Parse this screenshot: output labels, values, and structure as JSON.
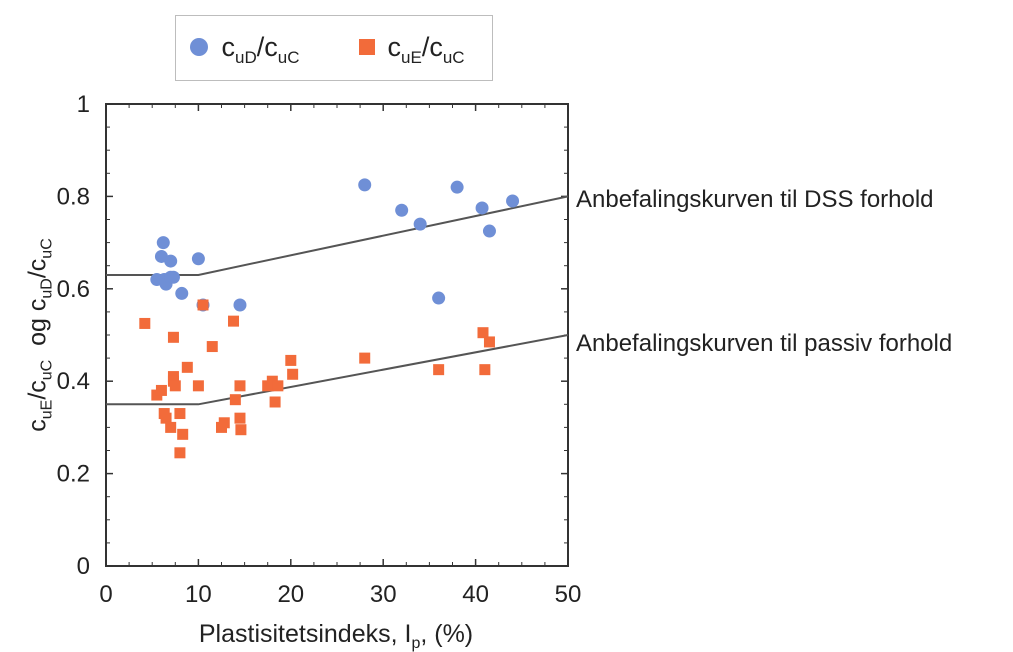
{
  "chart_data": {
    "type": "scatter",
    "xlabel_main": "Plastisitetsindeks, I",
    "xlabel_sub": "p",
    "xlabel_tail": ", (%)",
    "ylabel_parts": [
      "c",
      "uE",
      "/c",
      "uC",
      "  og c",
      "uD",
      "/c",
      "uC"
    ],
    "xlim": [
      0,
      50
    ],
    "ylim": [
      0,
      1
    ],
    "xticks": [
      0,
      10,
      20,
      30,
      40,
      50
    ],
    "yticks": [
      0,
      0.2,
      0.4,
      0.6,
      0.8,
      1
    ],
    "ytick_labels": [
      "0",
      "0.2",
      "0.4",
      "0.6",
      "0.8",
      "1"
    ],
    "legend_position": "top",
    "series": [
      {
        "name": "c_uD/c_uC",
        "name_parts": [
          "c",
          "uD",
          "/c",
          "uC"
        ],
        "marker": "circle",
        "color": "#6F8FD6",
        "points": [
          [
            5.5,
            0.62
          ],
          [
            6.0,
            0.67
          ],
          [
            6.2,
            0.7
          ],
          [
            6.3,
            0.62
          ],
          [
            6.5,
            0.61
          ],
          [
            7.0,
            0.66
          ],
          [
            7.0,
            0.625
          ],
          [
            7.3,
            0.625
          ],
          [
            8.2,
            0.59
          ],
          [
            10.0,
            0.665
          ],
          [
            10.5,
            0.565
          ],
          [
            14.5,
            0.565
          ],
          [
            28.0,
            0.825
          ],
          [
            32.0,
            0.77
          ],
          [
            34.0,
            0.74
          ],
          [
            36.0,
            0.58
          ],
          [
            38.0,
            0.82
          ],
          [
            40.7,
            0.775
          ],
          [
            41.5,
            0.725
          ],
          [
            44.0,
            0.79
          ]
        ]
      },
      {
        "name": "c_uE/c_uC",
        "name_parts": [
          "c",
          "uE",
          "/c",
          "uC"
        ],
        "marker": "square",
        "color": "#F26B3A",
        "points": [
          [
            4.2,
            0.525
          ],
          [
            5.5,
            0.37
          ],
          [
            6.0,
            0.38
          ],
          [
            6.3,
            0.33
          ],
          [
            6.5,
            0.32
          ],
          [
            7.0,
            0.3
          ],
          [
            7.3,
            0.495
          ],
          [
            7.3,
            0.41
          ],
          [
            7.3,
            0.4
          ],
          [
            7.5,
            0.39
          ],
          [
            8.0,
            0.33
          ],
          [
            8.0,
            0.245
          ],
          [
            8.3,
            0.285
          ],
          [
            8.8,
            0.43
          ],
          [
            10.0,
            0.39
          ],
          [
            10.5,
            0.565
          ],
          [
            11.5,
            0.475
          ],
          [
            12.5,
            0.3
          ],
          [
            12.8,
            0.31
          ],
          [
            13.8,
            0.53
          ],
          [
            14.0,
            0.36
          ],
          [
            14.5,
            0.39
          ],
          [
            14.5,
            0.32
          ],
          [
            14.6,
            0.295
          ],
          [
            17.5,
            0.39
          ],
          [
            18.0,
            0.4
          ],
          [
            18.3,
            0.355
          ],
          [
            18.6,
            0.39
          ],
          [
            20.0,
            0.445
          ],
          [
            20.2,
            0.415
          ],
          [
            28.0,
            0.45
          ],
          [
            36.0,
            0.425
          ],
          [
            40.8,
            0.505
          ],
          [
            41.0,
            0.425
          ],
          [
            41.5,
            0.485
          ]
        ]
      }
    ],
    "curves": [
      {
        "name": "DSS",
        "color": "#555555",
        "points": [
          [
            0,
            0.63
          ],
          [
            10,
            0.63
          ],
          [
            50,
            0.8
          ]
        ]
      },
      {
        "name": "passiv",
        "color": "#555555",
        "points": [
          [
            0,
            0.35
          ],
          [
            10,
            0.35
          ],
          [
            50,
            0.5
          ]
        ]
      }
    ],
    "annotations": [
      "Anbefalingskurven til DSS forhold",
      "Anbefalingskurven til passiv forhold"
    ]
  }
}
